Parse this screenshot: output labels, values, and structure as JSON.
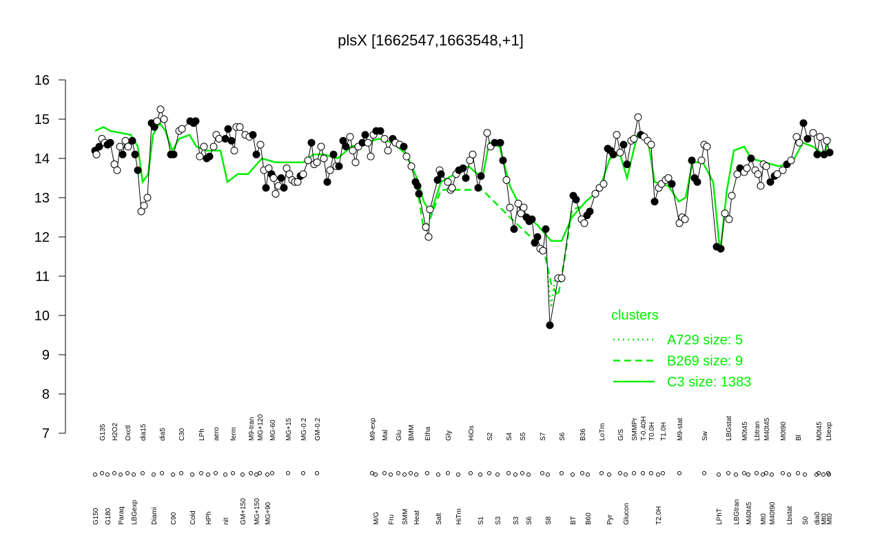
{
  "chart_data": {
    "type": "line",
    "title": "plsX [1662547,1663548,+1]",
    "ylim": [
      7,
      16
    ],
    "yticks": [
      7,
      8,
      9,
      10,
      11,
      12,
      13,
      14,
      15,
      16
    ],
    "xlim": [
      130,
      1212
    ],
    "xticks_top_row": [
      {
        "value": 148,
        "label": "G135"
      },
      {
        "value": 166,
        "label": "H2O2"
      },
      {
        "value": 185,
        "label": "Oxctl"
      },
      {
        "value": 207,
        "label": "dia15"
      },
      {
        "value": 235,
        "label": "dia5"
      },
      {
        "value": 263,
        "label": "C30"
      },
      {
        "value": 292,
        "label": "LPh"
      },
      {
        "value": 313,
        "label": "aero"
      },
      {
        "value": 338,
        "label": "ferm"
      },
      {
        "value": 364,
        "label": "M9-tran"
      },
      {
        "value": 377,
        "label": "MG+120"
      },
      {
        "value": 395,
        "label": "MG-60"
      },
      {
        "value": 418,
        "label": "MG+15"
      },
      {
        "value": 440,
        "label": "MG-0.2"
      },
      {
        "value": 460,
        "label": "GM-0.2"
      },
      {
        "value": 540,
        "label": "M9-exp"
      },
      {
        "value": 558,
        "label": "Mal"
      },
      {
        "value": 578,
        "label": "Glu"
      },
      {
        "value": 596,
        "label": "BMM"
      },
      {
        "value": 620,
        "label": "Etha"
      },
      {
        "value": 650,
        "label": "Gly"
      },
      {
        "value": 683,
        "label": "HiOs"
      },
      {
        "value": 710,
        "label": "S2"
      },
      {
        "value": 738,
        "label": "S4"
      },
      {
        "value": 758,
        "label": "S5"
      },
      {
        "value": 787,
        "label": "S7"
      },
      {
        "value": 815,
        "label": "S6"
      },
      {
        "value": 845,
        "label": "B36"
      },
      {
        "value": 873,
        "label": "LoTm"
      },
      {
        "value": 900,
        "label": "G/S"
      },
      {
        "value": 920,
        "label": "SMMPr"
      },
      {
        "value": 933,
        "label": "T-0.40H"
      },
      {
        "value": 945,
        "label": "T0.0H"
      },
      {
        "value": 962,
        "label": "T1.0H"
      },
      {
        "value": 986,
        "label": "M9-stat"
      },
      {
        "value": 1022,
        "label": "Sw"
      },
      {
        "value": 1057,
        "label": "LBGstat"
      },
      {
        "value": 1080,
        "label": "M0t45"
      },
      {
        "value": 1098,
        "label": "Lbtran"
      },
      {
        "value": 1112,
        "label": "M40t45"
      },
      {
        "value": 1136,
        "label": "M0t90"
      },
      {
        "value": 1158,
        "label": "Bl"
      },
      {
        "value": 1188,
        "label": "M0t45"
      },
      {
        "value": 1202,
        "label": "Lbexp"
      }
    ],
    "xticks_bottom_row": [
      {
        "value": 138,
        "label": "G150"
      },
      {
        "value": 156,
        "label": "G180"
      },
      {
        "value": 175,
        "label": "Paraq"
      },
      {
        "value": 194,
        "label": "LBGexp"
      },
      {
        "value": 223,
        "label": "Diami"
      },
      {
        "value": 251,
        "label": "C90"
      },
      {
        "value": 279,
        "label": "Cold"
      },
      {
        "value": 302,
        "label": "HPh"
      },
      {
        "value": 327,
        "label": "nit"
      },
      {
        "value": 352,
        "label": "GM+150"
      },
      {
        "value": 372,
        "label": "MG+150"
      },
      {
        "value": 388,
        "label": "MG+90"
      },
      {
        "value": 545,
        "label": "M/G"
      },
      {
        "value": 567,
        "label": "Fru"
      },
      {
        "value": 587,
        "label": "SMM"
      },
      {
        "value": 604,
        "label": "Heat"
      },
      {
        "value": 636,
        "label": "Salt"
      },
      {
        "value": 665,
        "label": "HiTm"
      },
      {
        "value": 697,
        "label": "S1"
      },
      {
        "value": 722,
        "label": "S3"
      },
      {
        "value": 748,
        "label": "S3"
      },
      {
        "value": 767,
        "label": "S6"
      },
      {
        "value": 795,
        "label": "S8"
      },
      {
        "value": 831,
        "label": "BT"
      },
      {
        "value": 853,
        "label": "B60"
      },
      {
        "value": 884,
        "label": "Pyr"
      },
      {
        "value": 908,
        "label": "Glucon"
      },
      {
        "value": 955,
        "label": "T2.0H"
      },
      {
        "value": 1043,
        "label": "LPhT"
      },
      {
        "value": 1068,
        "label": "LBGtran"
      },
      {
        "value": 1086,
        "label": "M40t45"
      },
      {
        "value": 1107,
        "label": "Mt0"
      },
      {
        "value": 1120,
        "label": "M40t90"
      },
      {
        "value": 1145,
        "label": "Lbstat"
      },
      {
        "value": 1168,
        "label": "S0"
      },
      {
        "value": 1185,
        "label": "dia0"
      },
      {
        "value": 1195,
        "label": "Mt0"
      },
      {
        "value": 1203,
        "label": "Mt0"
      }
    ],
    "series": [
      {
        "color": "#000000",
        "x": [
          138,
          140,
          144,
          148,
          152,
          156,
          160,
          166,
          170,
          174,
          178,
          182,
          186,
          192,
          196,
          200,
          205,
          209,
          214,
          220,
          224,
          228,
          233,
          238,
          248,
          252,
          260,
          264,
          276,
          281,
          284,
          290,
          296,
          300,
          304,
          310,
          314,
          318,
          327,
          331,
          336,
          340,
          343,
          348,
          356,
          362,
          367,
          372,
          378,
          383,
          386,
          390,
          394,
          397,
          400,
          404,
          408,
          412,
          416,
          420,
          424,
          428,
          432,
          436,
          440,
          447,
          452,
          456,
          460,
          466,
          470,
          475,
          479,
          484,
          488,
          492,
          498,
          502,
          508,
          512,
          516,
          520,
          526,
          530,
          534,
          538,
          542,
          546,
          552,
          558,
          563,
          570,
          574,
          580,
          586,
          590,
          597,
          603,
          606,
          608,
          618,
          622,
          624,
          635,
          638,
          640,
          650,
          654,
          656,
          662,
          666,
          672,
          676,
          682,
          686,
          694,
          698,
          707,
          712,
          718,
          726,
          730,
          735,
          740,
          746,
          752,
          756,
          760,
          764,
          768,
          772,
          776,
          780,
          784,
          788,
          792,
          798,
          810,
          815,
          832,
          836,
          844,
          848,
          852,
          856,
          864,
          870,
          876,
          882,
          886,
          890,
          895,
          900,
          905,
          910,
          916,
          920,
          926,
          930,
          935,
          940,
          945,
          950,
          956,
          960,
          966,
          970,
          975,
          986,
          990,
          994,
          1004,
          1008,
          1012,
          1018,
          1022,
          1026,
          1040,
          1046,
          1052,
          1058,
          1062,
          1070,
          1074,
          1080,
          1084,
          1090,
          1096,
          1100,
          1104,
          1108,
          1112,
          1118,
          1124,
          1128,
          1136,
          1142,
          1148,
          1156,
          1160,
          1166,
          1172,
          1180,
          1186,
          1190,
          1196,
          1200,
          1204
        ],
        "values": [
          14.2,
          14.1,
          14.3,
          14.5,
          14.4,
          14.35,
          14.4,
          13.85,
          13.7,
          14.3,
          14.1,
          14.45,
          14.3,
          14.45,
          14.1,
          13.7,
          12.65,
          12.8,
          13.0,
          14.9,
          14.8,
          14.95,
          15.25,
          15.0,
          14.1,
          14.1,
          14.7,
          14.75,
          14.95,
          14.9,
          14.95,
          14.05,
          14.3,
          14.0,
          14.05,
          14.3,
          14.6,
          14.5,
          14.5,
          14.75,
          14.45,
          14.2,
          14.8,
          14.8,
          14.6,
          14.55,
          14.6,
          14.1,
          14.35,
          13.7,
          13.25,
          13.75,
          13.6,
          13.5,
          13.1,
          13.3,
          13.5,
          13.25,
          13.75,
          13.6,
          13.45,
          13.4,
          13.4,
          13.55,
          13.6,
          13.95,
          14.4,
          13.85,
          13.9,
          14.3,
          14.0,
          13.4,
          13.7,
          14.1,
          13.8,
          13.8,
          14.45,
          14.3,
          14.55,
          14.2,
          13.9,
          14.3,
          14.4,
          14.6,
          14.4,
          14.05,
          14.6,
          14.7,
          14.7,
          14.5,
          14.2,
          14.5,
          14.4,
          14.35,
          14.3,
          14.05,
          13.8,
          13.4,
          13.3,
          13.1,
          12.25,
          12.0,
          12.7,
          13.45,
          13.7,
          13.6,
          13.4,
          13.2,
          13.25,
          13.6,
          13.7,
          13.75,
          13.5,
          13.95,
          14.1,
          13.25,
          13.55,
          14.65,
          14.3,
          14.4,
          14.4,
          13.95,
          13.45,
          12.75,
          12.2,
          12.85,
          12.6,
          12.75,
          12.5,
          12.4,
          12.45,
          11.85,
          12.0,
          11.7,
          11.65,
          12.2,
          9.75,
          10.95,
          10.95,
          13.05,
          12.95,
          12.45,
          12.35,
          12.55,
          12.65,
          13.1,
          13.25,
          13.35,
          14.25,
          14.2,
          14.1,
          14.6,
          14.15,
          14.35,
          13.85,
          14.45,
          14.5,
          15.05,
          14.6,
          14.55,
          14.45,
          14.35,
          12.9,
          13.25,
          13.35,
          13.45,
          13.5,
          13.35,
          12.35,
          12.5,
          12.45,
          13.95,
          13.5,
          13.4,
          13.95,
          14.35,
          14.3,
          11.75,
          11.7,
          12.6,
          12.45,
          13.05,
          13.6,
          13.75,
          13.65,
          13.75,
          14.0,
          13.7,
          13.6,
          13.3,
          13.85,
          13.8,
          13.4,
          13.55,
          13.6,
          13.7,
          13.85,
          13.95,
          14.55,
          14.4,
          14.9,
          14.5,
          14.65,
          14.1,
          14.55,
          14.1,
          14.45,
          14.15
        ],
        "filled": [
          1,
          0,
          1,
          0,
          0,
          1,
          1,
          0,
          0,
          0,
          1,
          0,
          0,
          1,
          1,
          1,
          0,
          0,
          0,
          1,
          1,
          0,
          0,
          0,
          1,
          1,
          0,
          0,
          1,
          1,
          1,
          0,
          0,
          1,
          1,
          0,
          0,
          0,
          1,
          1,
          1,
          0,
          0,
          0,
          0,
          0,
          1,
          1,
          0,
          0,
          1,
          0,
          1,
          0,
          0,
          0,
          1,
          1,
          0,
          0,
          0,
          0,
          0,
          1,
          0,
          0,
          1,
          0,
          0,
          0,
          0,
          1,
          0,
          1,
          0,
          1,
          1,
          1,
          0,
          0,
          0,
          0,
          1,
          1,
          0,
          0,
          0,
          1,
          1,
          0,
          0,
          1,
          0,
          0,
          1,
          0,
          0,
          1,
          1,
          1,
          0,
          0,
          0,
          1,
          0,
          1,
          0,
          0,
          0,
          0,
          1,
          1,
          1,
          0,
          0,
          1,
          1,
          0,
          0,
          1,
          1,
          1,
          0,
          0,
          1,
          0,
          0,
          0,
          1,
          1,
          1,
          1,
          1,
          0,
          0,
          1,
          1,
          0,
          0,
          1,
          1,
          0,
          0,
          1,
          1,
          0,
          0,
          0,
          1,
          1,
          1,
          0,
          0,
          1,
          1,
          0,
          0,
          0,
          1,
          0,
          0,
          0,
          1,
          0,
          0,
          0,
          0,
          1,
          0,
          0,
          0,
          1,
          1,
          1,
          0,
          0,
          0,
          1,
          1,
          0,
          0,
          0,
          0,
          1,
          0,
          0,
          1,
          0,
          0,
          0,
          0,
          0,
          1,
          1,
          0,
          0,
          1,
          0,
          0,
          0,
          1,
          1,
          0,
          1,
          0,
          1,
          0,
          1
        ]
      }
    ],
    "clusters": {
      "title": "clusters",
      "color": "#00ee00",
      "series": [
        {
          "name": "A729 size: 5",
          "dash": "dotted",
          "x": [
            795,
            800,
            805,
            812
          ],
          "values": [
            11.0,
            10.2,
            10.9,
            11.0
          ]
        },
        {
          "name": "B269 size: 9",
          "dash": "dashed",
          "x": [
            605,
            615,
            625,
            640,
            700,
            740,
            770,
            790,
            800,
            810,
            820,
            830,
            850
          ],
          "values": [
            13.3,
            12.2,
            12.5,
            13.2,
            13.2,
            12.5,
            12.0,
            11.6,
            10.8,
            10.5,
            11.5,
            12.7,
            12.8
          ]
        },
        {
          "name": "C3 size: 1383",
          "dash": "solid",
          "x": [
            138,
            150,
            160,
            175,
            190,
            200,
            207,
            215,
            222,
            232,
            240,
            250,
            260,
            275,
            285,
            300,
            320,
            330,
            345,
            360,
            380,
            400,
            420,
            440,
            455,
            470,
            490,
            510,
            530,
            550,
            570,
            590,
            605,
            615,
            625,
            640,
            660,
            680,
            700,
            710,
            725,
            740,
            760,
            780,
            800,
            815,
            830,
            850,
            870,
            885,
            900,
            910,
            925,
            940,
            950,
            970,
            985,
            995,
            1005,
            1020,
            1035,
            1045,
            1055,
            1065,
            1080,
            1090,
            1110,
            1130,
            1150,
            1165,
            1180,
            1195,
            1205
          ],
          "values": [
            14.7,
            14.8,
            14.7,
            14.65,
            14.6,
            14.3,
            13.4,
            13.6,
            14.6,
            14.9,
            14.7,
            14.2,
            14.5,
            14.6,
            14.3,
            14.2,
            14.2,
            13.4,
            13.6,
            13.6,
            14.0,
            13.9,
            13.9,
            13.9,
            14.1,
            14.1,
            14.0,
            14.3,
            14.4,
            14.5,
            14.4,
            14.1,
            13.5,
            12.9,
            12.6,
            13.4,
            13.6,
            13.8,
            13.5,
            14.4,
            14.3,
            13.3,
            12.6,
            12.3,
            11.9,
            11.9,
            12.5,
            12.9,
            13.2,
            14.0,
            14.1,
            13.5,
            14.6,
            14.5,
            13.4,
            13.3,
            12.9,
            13.0,
            13.9,
            13.9,
            13.4,
            11.6,
            13.2,
            14.2,
            14.3,
            14.0,
            13.9,
            13.8,
            13.9,
            14.4,
            14.3,
            14.1,
            14.5
          ]
        }
      ]
    }
  }
}
